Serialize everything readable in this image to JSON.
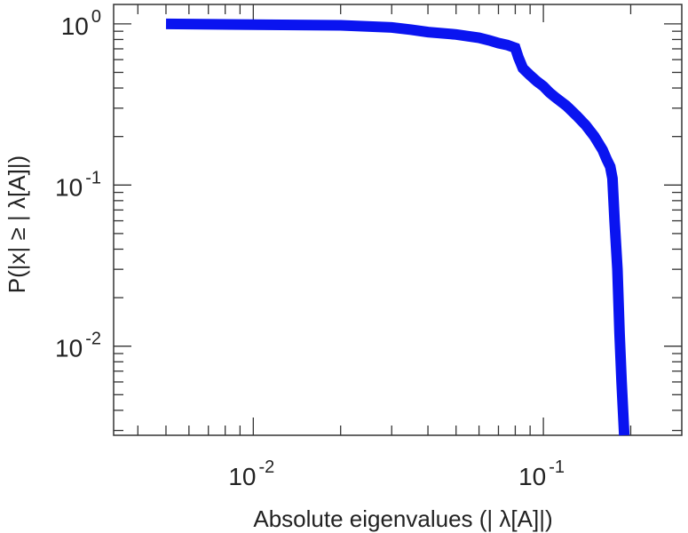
{
  "chart_data": {
    "type": "line",
    "xlabel": "Absolute eigenvalues (|     λ[A]|)",
    "ylabel": "P(|x|  ≥ | λ[A]|)",
    "x_scale": "log",
    "y_scale": "log",
    "xlim": [
      0.0033,
      0.3
    ],
    "ylim": [
      0.0028,
      1.32
    ],
    "grid": false,
    "x_ticks": [
      {
        "base": "10",
        "exp": "-2",
        "value": 0.01
      },
      {
        "base": "10",
        "exp": "-1",
        "value": 0.1
      }
    ],
    "y_ticks": [
      {
        "base": "10",
        "exp": "0",
        "value": 1
      },
      {
        "base": "10",
        "exp": "-1",
        "value": 0.1
      },
      {
        "base": "10",
        "exp": "-2",
        "value": 0.01
      }
    ],
    "series": [
      {
        "color": "#0a14f0",
        "x": [
          0.005,
          0.01,
          0.02,
          0.03,
          0.035,
          0.04,
          0.05,
          0.06,
          0.065,
          0.07,
          0.075,
          0.08,
          0.082,
          0.085,
          0.09,
          0.095,
          0.1,
          0.105,
          0.11,
          0.12,
          0.13,
          0.14,
          0.15,
          0.16,
          0.165,
          0.17,
          0.173,
          0.176,
          0.18,
          0.183,
          0.186,
          0.19
        ],
        "y": [
          1.0,
          0.99,
          0.98,
          0.95,
          0.92,
          0.89,
          0.86,
          0.82,
          0.79,
          0.76,
          0.74,
          0.71,
          0.62,
          0.53,
          0.48,
          0.44,
          0.41,
          0.375,
          0.35,
          0.31,
          0.27,
          0.235,
          0.2,
          0.165,
          0.145,
          0.13,
          0.11,
          0.06,
          0.03,
          0.012,
          0.006,
          0.0028
        ]
      }
    ]
  }
}
